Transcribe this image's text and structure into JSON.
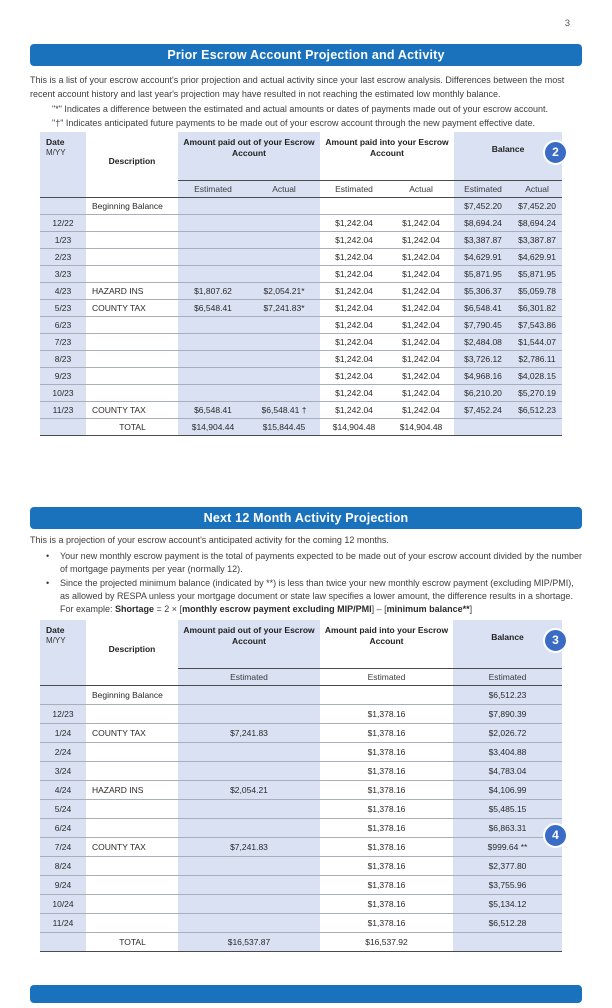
{
  "page_number": "3",
  "colors": {
    "header_blue": "#1B72BC",
    "stripe_blue": "#DAE1F2",
    "badge_blue": "#3A6CC6"
  },
  "section1": {
    "title": "Prior Escrow Account Projection and Activity",
    "intro": "This is a list of your escrow account's prior projection and actual activity since your last escrow analysis.  Differences between the most recent account history and last year's projection may have resulted in not reaching the estimated low monthly balance.",
    "note_star": "\"*\" Indicates a difference between the estimated and actual amounts or dates of payments made out of your escrow account.",
    "note_dagger": "\"†\" Indicates anticipated future payments to be made out of your escrow account through the new payment effective date.",
    "badge": "2",
    "table": {
      "columns": {
        "date_line1": "Date",
        "date_line2": "M/YY",
        "description": "Description",
        "out_group": "Amount paid out of your Escrow Account",
        "in_group": "Amount paid into your Escrow Account",
        "balance_group": "Balance",
        "estimated": "Estimated",
        "actual": "Actual"
      },
      "rows": [
        [
          "",
          "Beginning Balance",
          "",
          "",
          "",
          "",
          "$7,452.20",
          "$7,452.20"
        ],
        [
          "12/22",
          "",
          "",
          "",
          "$1,242.04",
          "$1,242.04",
          "$8,694.24",
          "$8,694.24"
        ],
        [
          "1/23",
          "",
          "",
          "",
          "$1,242.04",
          "$1,242.04",
          "$3,387.87",
          "$3,387.87"
        ],
        [
          "2/23",
          "",
          "",
          "",
          "$1,242.04",
          "$1,242.04",
          "$4,629.91",
          "$4,629.91"
        ],
        [
          "3/23",
          "",
          "",
          "",
          "$1,242.04",
          "$1,242.04",
          "$5,871.95",
          "$5,871.95"
        ],
        [
          "4/23",
          "HAZARD INS",
          "$1,807.62",
          "$2,054.21*",
          "$1,242.04",
          "$1,242.04",
          "$5,306.37",
          "$5,059.78"
        ],
        [
          "5/23",
          "COUNTY TAX",
          "$6,548.41",
          "$7,241.83*",
          "$1,242.04",
          "$1,242.04",
          "$6,548.41",
          "$6,301.82"
        ],
        [
          "6/23",
          "",
          "",
          "",
          "$1,242.04",
          "$1,242.04",
          "$7,790.45",
          "$7,543.86"
        ],
        [
          "7/23",
          "",
          "",
          "",
          "$1,242.04",
          "$1,242.04",
          "$2,484.08",
          "$1,544.07"
        ],
        [
          "8/23",
          "",
          "",
          "",
          "$1,242.04",
          "$1,242.04",
          "$3,726.12",
          "$2,786.11"
        ],
        [
          "9/23",
          "",
          "",
          "",
          "$1,242.04",
          "$1,242.04",
          "$4,968.16",
          "$4,028.15"
        ],
        [
          "10/23",
          "",
          "",
          "",
          "$1,242.04",
          "$1,242.04",
          "$6,210.20",
          "$5,270.19"
        ],
        [
          "11/23",
          "COUNTY TAX",
          "$6,548.41",
          "$6,548.41 †",
          "$1,242.04",
          "$1,242.04",
          "$7,452.24",
          "$6,512.23"
        ]
      ],
      "total_row": [
        "",
        "TOTAL",
        "$14,904.44",
        "$15,844.45",
        "$14,904.48",
        "$14,904.48",
        "",
        ""
      ]
    }
  },
  "section2": {
    "title": "Next 12 Month Activity Projection",
    "intro": "This is a projection of your escrow account's anticipated activity for the coming 12 months.",
    "bullet1": "Your new monthly escrow payment is the total of payments expected to be made out of your escrow account divided by the number of mortgage payments per year (normally 12).",
    "bullet2_lead": "Since the projected minimum balance (indicated by **) is less than twice your new monthly escrow payment (excluding MIP/PMI), as allowed by RESPA unless your mortgage document or state law specifies a lower amount, the difference results in a shortage.  For example: ",
    "formula_bold1": "Shortage",
    "formula_mid1": " = 2 × [",
    "formula_bold2": "monthly escrow payment excluding MIP/PMI",
    "formula_mid2": "] – [",
    "formula_bold3": "minimum balance**",
    "formula_end": "]",
    "badge_header": "3",
    "badge_row": "4",
    "table": {
      "columns": {
        "date_line1": "Date",
        "date_line2": "M/YY",
        "description": "Description",
        "out_group": "Amount paid out of your Escrow Account",
        "in_group": "Amount paid into your Escrow Account",
        "balance_group": "Balance",
        "estimated": "Estimated"
      },
      "rows": [
        [
          "",
          "Beginning Balance",
          "",
          "",
          "$6,512.23"
        ],
        [
          "12/23",
          "",
          "",
          "$1,378.16",
          "$7,890.39"
        ],
        [
          "1/24",
          "COUNTY TAX",
          "$7,241.83",
          "$1,378.16",
          "$2,026.72"
        ],
        [
          "2/24",
          "",
          "",
          "$1,378.16",
          "$3,404.88"
        ],
        [
          "3/24",
          "",
          "",
          "$1,378.16",
          "$4,783.04"
        ],
        [
          "4/24",
          "HAZARD INS",
          "$2,054.21",
          "$1,378.16",
          "$4,106.99"
        ],
        [
          "5/24",
          "",
          "",
          "$1,378.16",
          "$5,485.15"
        ],
        [
          "6/24",
          "",
          "",
          "$1,378.16",
          "$6,863.31"
        ],
        [
          "7/24",
          "COUNTY TAX",
          "$7,241.83",
          "$1,378.16",
          "$999.64 **"
        ],
        [
          "8/24",
          "",
          "",
          "$1,378.16",
          "$2,377.80"
        ],
        [
          "9/24",
          "",
          "",
          "$1,378.16",
          "$3,755.96"
        ],
        [
          "10/24",
          "",
          "",
          "$1,378.16",
          "$5,134.12"
        ],
        [
          "11/24",
          "",
          "",
          "$1,378.16",
          "$6,512.28"
        ]
      ],
      "total_row": [
        "",
        "TOTAL",
        "$16,537.87",
        "$16,537.92",
        ""
      ]
    }
  }
}
